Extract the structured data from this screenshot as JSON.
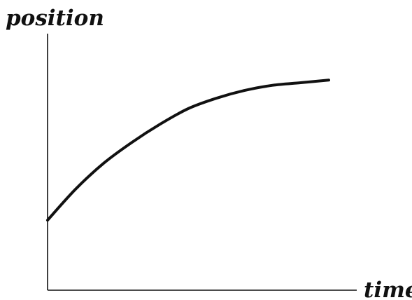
{
  "chart_data": {
    "type": "line",
    "title": "",
    "xlabel": "time",
    "ylabel": "position",
    "ticks_shown": false,
    "grid": false,
    "legend": "none",
    "xlim": [
      0,
      1
    ],
    "ylim": [
      0,
      1
    ],
    "series": [
      {
        "x": [
          0.0,
          0.1,
          0.2,
          0.3,
          0.4,
          0.5,
          0.6,
          0.7,
          0.8,
          0.9,
          1.0
        ],
        "y": [
          0.27,
          0.39,
          0.49,
          0.57,
          0.64,
          0.7,
          0.74,
          0.77,
          0.79,
          0.8,
          0.81
        ]
      }
    ],
    "colors": {
      "curve": "#111111",
      "axes": "#111111"
    }
  }
}
